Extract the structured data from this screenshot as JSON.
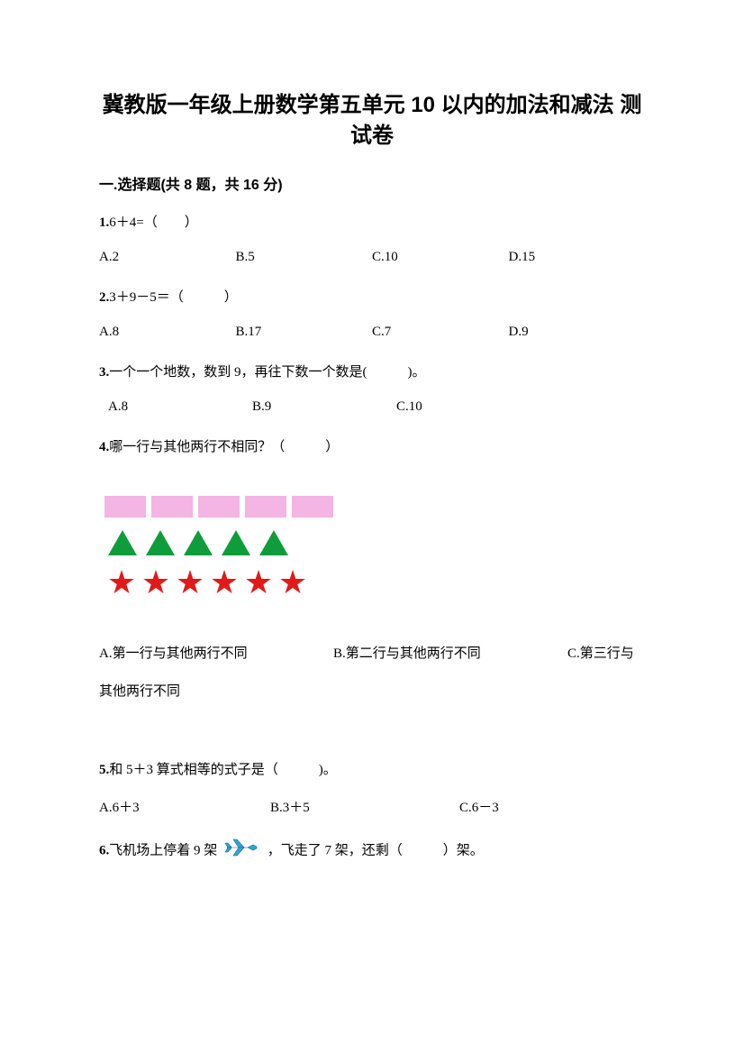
{
  "title": "冀教版一年级上册数学第五单元 10 以内的加法和减法 测试卷",
  "section1": {
    "header": "一.选择题(共 8 题，共 16 分)",
    "q1": {
      "num": "1.",
      "text": "6＋4=（　　）",
      "opts": [
        "A.2",
        "B.5",
        "C.10",
        "D.15"
      ]
    },
    "q2": {
      "num": "2.",
      "text": "3＋9－5＝（　　　）",
      "opts": [
        "A.8",
        "B.17",
        "C.7",
        "D.9"
      ]
    },
    "q3": {
      "num": "3.",
      "text": "一个一个地数，数到 9，再往下数一个数是(　　　)。",
      "opts": [
        "A.8",
        "B.9",
        "C.10"
      ]
    },
    "q4": {
      "num": "4.",
      "text": "哪一行与其他两行不相同？（　　　）",
      "opts": [
        "A.第一行与其他两行不同",
        "B.第二行与其他两行不同",
        "C.第三行与其他两行不同"
      ]
    },
    "q5": {
      "num": "5.",
      "text": "和 5＋3 算式相等的式子是（　　　)。",
      "opts": [
        "A.6＋3",
        "B.3＋5",
        "C.6－3"
      ]
    },
    "q6": {
      "num": "6.",
      "text_a": "飞机场上停着 9 架",
      "text_b": "，飞走了 7 架，还剩（　　　）架。"
    }
  },
  "figure": {
    "rect_count": 5,
    "rect_color": "#f4b4e4",
    "tri_count": 5,
    "tri_color": "#0f9d3c",
    "star_count": 6,
    "star_color": "#e31919",
    "star_char": "★"
  },
  "plane": {
    "fill": "#2aa8d8",
    "stroke": "#1a5f8a"
  }
}
